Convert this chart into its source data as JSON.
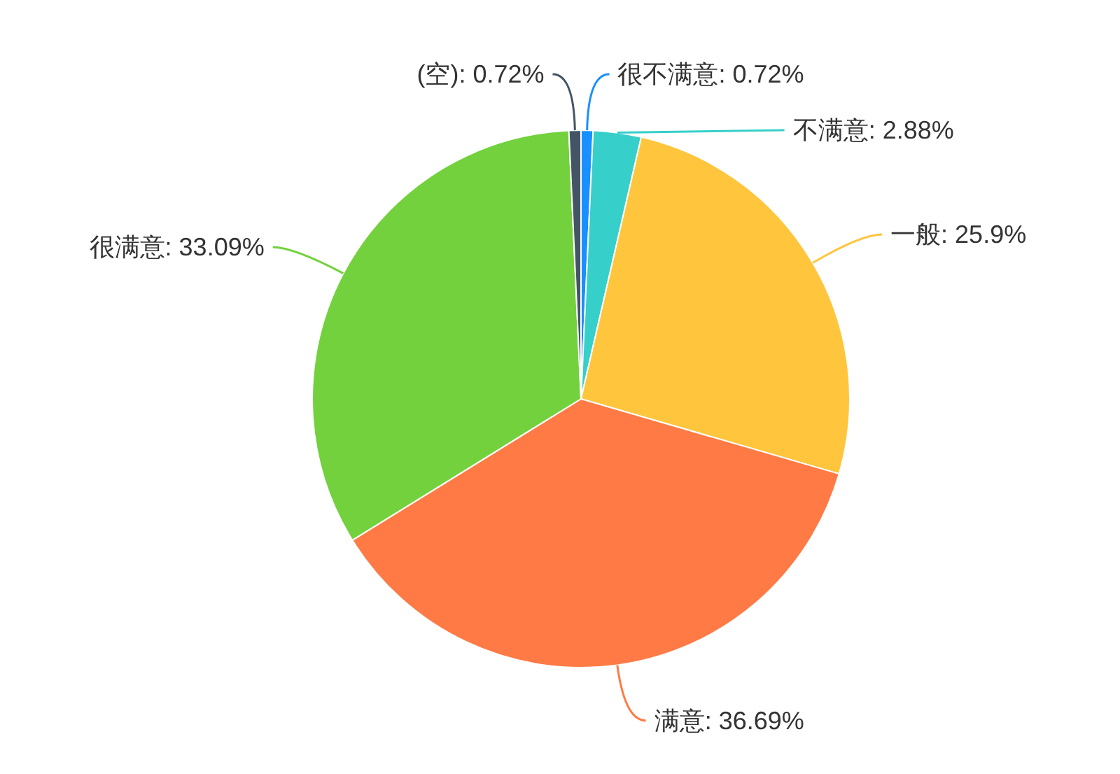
{
  "chart_data": {
    "type": "pie",
    "categories": [
      "很不满意",
      "不满意",
      "一般",
      "满意",
      "很满意",
      "(空)"
    ],
    "values": [
      0.72,
      2.88,
      25.9,
      36.69,
      33.09,
      0.72
    ],
    "colors": [
      "#1890ff",
      "#36cfc9",
      "#ffc53d",
      "#ff7a45",
      "#73d13d",
      "#435565"
    ],
    "value_labels": [
      "0.72%",
      "2.88%",
      "25.9%",
      "36.69%",
      "33.09%",
      "0.72%"
    ]
  }
}
